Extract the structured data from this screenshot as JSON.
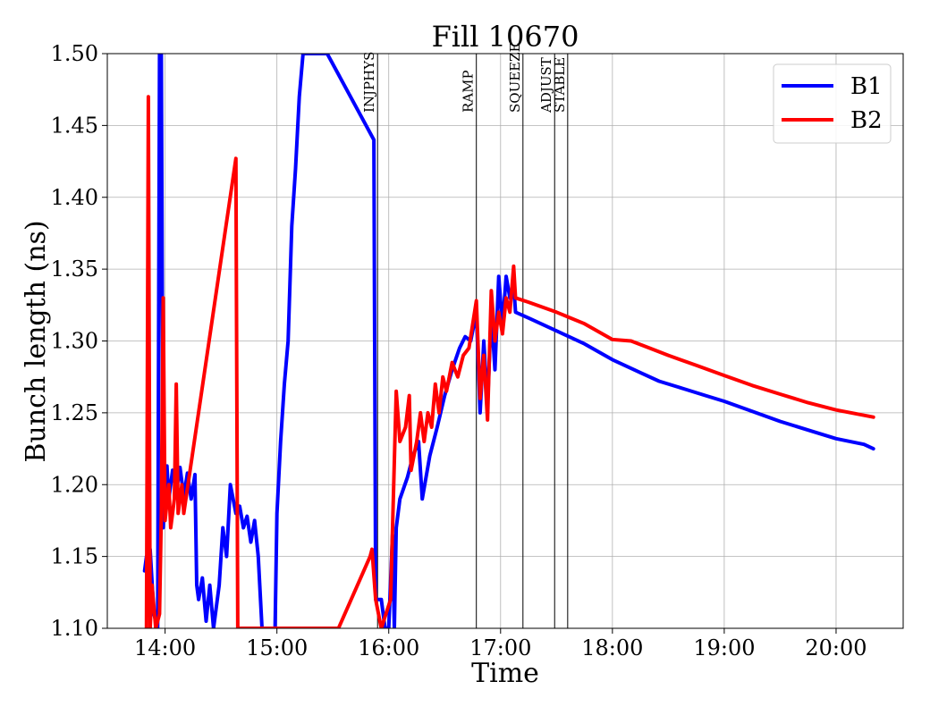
{
  "chart_data": {
    "type": "line",
    "title": "Fill 10670",
    "xlabel": "Time",
    "ylabel": "Bunch length (ns)",
    "xlim": [
      "13:29",
      "20:36"
    ],
    "ylim": [
      1.1,
      1.5
    ],
    "xticks": [
      "14:00",
      "15:00",
      "16:00",
      "17:00",
      "18:00",
      "19:00",
      "20:00"
    ],
    "yticks": [
      "1.10",
      "1.15",
      "1.20",
      "1.25",
      "1.30",
      "1.35",
      "1.40",
      "1.45",
      "1.50"
    ],
    "grid": true,
    "legend_position": "top-right",
    "phases": [
      {
        "label": "INJPHYS",
        "time": "15:54"
      },
      {
        "label": "RAMP",
        "time": "16:47"
      },
      {
        "label": "SQUEEZE",
        "time": "17:12"
      },
      {
        "label": "ADJUST",
        "time": "17:29"
      },
      {
        "label": "STABLE",
        "time": "17:36"
      }
    ],
    "series": [
      {
        "name": "B1",
        "color": "#0000ff",
        "points": [
          [
            "13:49",
            1.14
          ],
          [
            "13:50",
            1.15
          ],
          [
            "13:51",
            1.13
          ],
          [
            "13:52",
            1.155
          ],
          [
            "13:54",
            1.11
          ],
          [
            "13:56",
            1.1
          ],
          [
            "13:57",
            1.5
          ],
          [
            "13:58",
            1.5
          ],
          [
            "13:59",
            1.17
          ],
          [
            "14:00",
            1.2
          ],
          [
            "14:01",
            1.213
          ],
          [
            "14:02",
            1.19
          ],
          [
            "14:04",
            1.21
          ],
          [
            "14:06",
            1.195
          ],
          [
            "14:08",
            1.212
          ],
          [
            "14:10",
            1.192
          ],
          [
            "14:12",
            1.208
          ],
          [
            "14:14",
            1.19
          ],
          [
            "14:16",
            1.207
          ],
          [
            "14:17",
            1.13
          ],
          [
            "14:18",
            1.12
          ],
          [
            "14:20",
            1.135
          ],
          [
            "14:22",
            1.105
          ],
          [
            "14:24",
            1.13
          ],
          [
            "14:26",
            1.1
          ],
          [
            "14:29",
            1.13
          ],
          [
            "14:31",
            1.17
          ],
          [
            "14:33",
            1.15
          ],
          [
            "14:35",
            1.2
          ],
          [
            "14:38",
            1.18
          ],
          [
            "14:40",
            1.185
          ],
          [
            "14:42",
            1.17
          ],
          [
            "14:44",
            1.178
          ],
          [
            "14:46",
            1.16
          ],
          [
            "14:48",
            1.175
          ],
          [
            "14:50",
            1.15
          ],
          [
            "14:52",
            1.1
          ],
          [
            "14:59",
            1.1
          ],
          [
            "15:00",
            1.18
          ],
          [
            "15:02",
            1.23
          ],
          [
            "15:04",
            1.27
          ],
          [
            "15:06",
            1.3
          ],
          [
            "15:08",
            1.38
          ],
          [
            "15:10",
            1.42
          ],
          [
            "15:12",
            1.47
          ],
          [
            "15:14",
            1.5
          ],
          [
            "15:15",
            1.5
          ],
          [
            "15:27",
            1.5
          ],
          [
            "15:52",
            1.44
          ],
          [
            "15:53",
            1.12
          ],
          [
            "15:56",
            1.12
          ],
          [
            "15:58",
            1.1
          ],
          [
            "16:00",
            1.1
          ],
          [
            "16:02",
            1.165
          ],
          [
            "16:03",
            1.1
          ],
          [
            "16:04",
            1.17
          ],
          [
            "16:06",
            1.19
          ],
          [
            "16:10",
            1.205
          ],
          [
            "16:13",
            1.22
          ],
          [
            "16:16",
            1.23
          ],
          [
            "16:18",
            1.19
          ],
          [
            "16:22",
            1.22
          ],
          [
            "16:26",
            1.24
          ],
          [
            "16:30",
            1.262
          ],
          [
            "16:34",
            1.28
          ],
          [
            "16:38",
            1.295
          ],
          [
            "16:41",
            1.303
          ],
          [
            "16:44",
            1.3
          ],
          [
            "16:47",
            1.32
          ],
          [
            "16:49",
            1.25
          ],
          [
            "16:51",
            1.3
          ],
          [
            "16:53",
            1.255
          ],
          [
            "16:55",
            1.32
          ],
          [
            "16:57",
            1.28
          ],
          [
            "16:59",
            1.345
          ],
          [
            "17:01",
            1.31
          ],
          [
            "17:03",
            1.345
          ],
          [
            "17:05",
            1.33
          ],
          [
            "17:07",
            1.34
          ],
          [
            "17:08",
            1.32
          ],
          [
            "17:15",
            1.316
          ],
          [
            "17:30",
            1.307
          ],
          [
            "17:45",
            1.298
          ],
          [
            "18:00",
            1.287
          ],
          [
            "18:15",
            1.278
          ],
          [
            "18:25",
            1.272
          ],
          [
            "18:35",
            1.268
          ],
          [
            "18:50",
            1.262
          ],
          [
            "19:00",
            1.258
          ],
          [
            "19:15",
            1.251
          ],
          [
            "19:30",
            1.244
          ],
          [
            "19:45",
            1.238
          ],
          [
            "20:00",
            1.232
          ],
          [
            "20:15",
            1.228
          ],
          [
            "20:20",
            1.225
          ]
        ]
      },
      {
        "name": "B2",
        "color": "#ff0000",
        "points": [
          [
            "13:50",
            1.1
          ],
          [
            "13:51",
            1.47
          ],
          [
            "13:52",
            1.1
          ],
          [
            "13:53",
            1.13
          ],
          [
            "13:55",
            1.1
          ],
          [
            "13:57",
            1.11
          ],
          [
            "13:58",
            1.18
          ],
          [
            "13:59",
            1.33
          ],
          [
            "14:00",
            1.175
          ],
          [
            "14:02",
            1.2
          ],
          [
            "14:03",
            1.17
          ],
          [
            "14:05",
            1.19
          ],
          [
            "14:06",
            1.27
          ],
          [
            "14:07",
            1.18
          ],
          [
            "14:09",
            1.2
          ],
          [
            "14:10",
            1.18
          ],
          [
            "14:38",
            1.427
          ],
          [
            "14:39",
            1.1
          ],
          [
            "15:33",
            1.1
          ],
          [
            "15:50",
            1.15
          ],
          [
            "15:51",
            1.155
          ],
          [
            "15:53",
            1.12
          ],
          [
            "15:56",
            1.1
          ],
          [
            "16:01",
            1.12
          ],
          [
            "16:04",
            1.265
          ],
          [
            "16:06",
            1.23
          ],
          [
            "16:09",
            1.24
          ],
          [
            "16:11",
            1.262
          ],
          [
            "16:12",
            1.21
          ],
          [
            "16:15",
            1.23
          ],
          [
            "16:17",
            1.25
          ],
          [
            "16:19",
            1.23
          ],
          [
            "16:21",
            1.25
          ],
          [
            "16:23",
            1.24
          ],
          [
            "16:25",
            1.27
          ],
          [
            "16:27",
            1.25
          ],
          [
            "16:29",
            1.275
          ],
          [
            "16:31",
            1.265
          ],
          [
            "16:34",
            1.285
          ],
          [
            "16:37",
            1.275
          ],
          [
            "16:40",
            1.29
          ],
          [
            "16:43",
            1.295
          ],
          [
            "16:47",
            1.328
          ],
          [
            "16:49",
            1.26
          ],
          [
            "16:51",
            1.29
          ],
          [
            "16:53",
            1.245
          ],
          [
            "16:55",
            1.335
          ],
          [
            "16:57",
            1.3
          ],
          [
            "16:59",
            1.32
          ],
          [
            "17:01",
            1.305
          ],
          [
            "17:03",
            1.33
          ],
          [
            "17:05",
            1.32
          ],
          [
            "17:07",
            1.352
          ],
          [
            "17:08",
            1.33
          ],
          [
            "17:15",
            1.327
          ],
          [
            "17:30",
            1.32
          ],
          [
            "17:45",
            1.312
          ],
          [
            "18:00",
            1.301
          ],
          [
            "18:10",
            1.3
          ],
          [
            "18:20",
            1.295
          ],
          [
            "18:30",
            1.29
          ],
          [
            "18:45",
            1.283
          ],
          [
            "19:00",
            1.276
          ],
          [
            "19:15",
            1.269
          ],
          [
            "19:30",
            1.263
          ],
          [
            "19:45",
            1.257
          ],
          [
            "20:00",
            1.252
          ],
          [
            "20:20",
            1.247
          ]
        ]
      }
    ]
  }
}
